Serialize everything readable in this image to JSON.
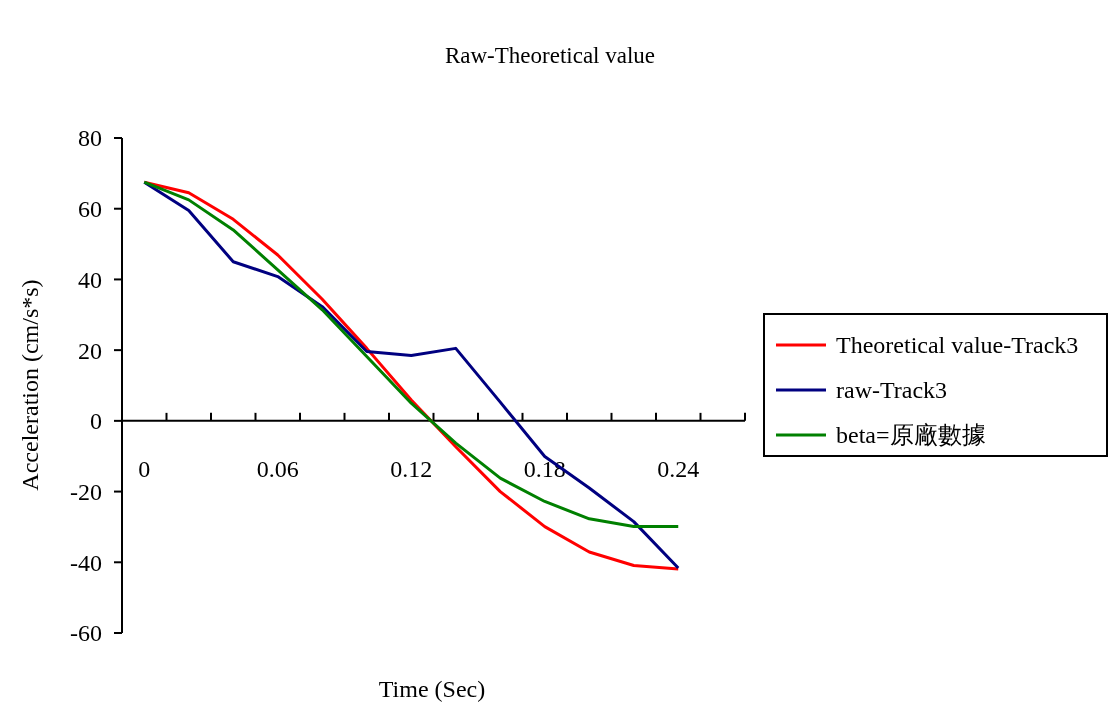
{
  "chart_data": {
    "type": "line",
    "title": "Raw-Theoretical value",
    "xlabel": "Time (Sec)",
    "ylabel": "Acceleration (cm/s*s)",
    "categories": [
      "0",
      null,
      null,
      "0.06",
      null,
      null,
      "0.12",
      null,
      null,
      "0.18",
      null,
      null,
      "0.24",
      null
    ],
    "series": [
      {
        "name": "Theoretical value-Track3",
        "color": "#ff0000",
        "values": [
          67.5,
          64.5,
          57,
          46.9,
          34.4,
          20.5,
          5.9,
          -7.3,
          -20,
          -29.9,
          -37.1,
          -40.9,
          -41.9,
          null
        ]
      },
      {
        "name": "raw-Track3",
        "color": "#000080",
        "values": [
          67.5,
          59.5,
          45,
          40.8,
          32.3,
          19.6,
          18.5,
          20.5,
          5.3,
          -10.1,
          -19,
          -28.5,
          -41.6,
          null
        ]
      },
      {
        "name": "beta=原廠數據",
        "color": "#008000",
        "values": [
          67.5,
          62.5,
          54,
          42.7,
          31.4,
          18.2,
          5,
          -6.3,
          -16.2,
          -22.8,
          -27.7,
          -29.9,
          -29.9,
          null
        ]
      }
    ],
    "ylim": [
      -60,
      80
    ],
    "yticks": [
      -60,
      -40,
      -20,
      0,
      20,
      40,
      60,
      80
    ],
    "grid": false,
    "legend": "right",
    "marker": "none",
    "line_style": "solid"
  }
}
